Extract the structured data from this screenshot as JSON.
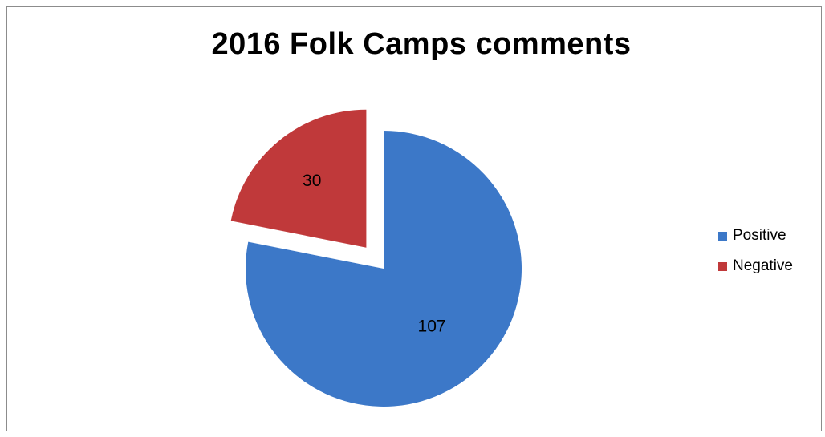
{
  "chart_data": {
    "type": "pie",
    "title": "2016 Folk Camps comments",
    "slices": [
      {
        "name": "Positive",
        "value": 107,
        "color": "#3c78c8",
        "exploded": false
      },
      {
        "name": "Negative",
        "value": 30,
        "color": "#c0393a",
        "exploded": true
      }
    ],
    "data_labels": true,
    "legend": "right"
  }
}
